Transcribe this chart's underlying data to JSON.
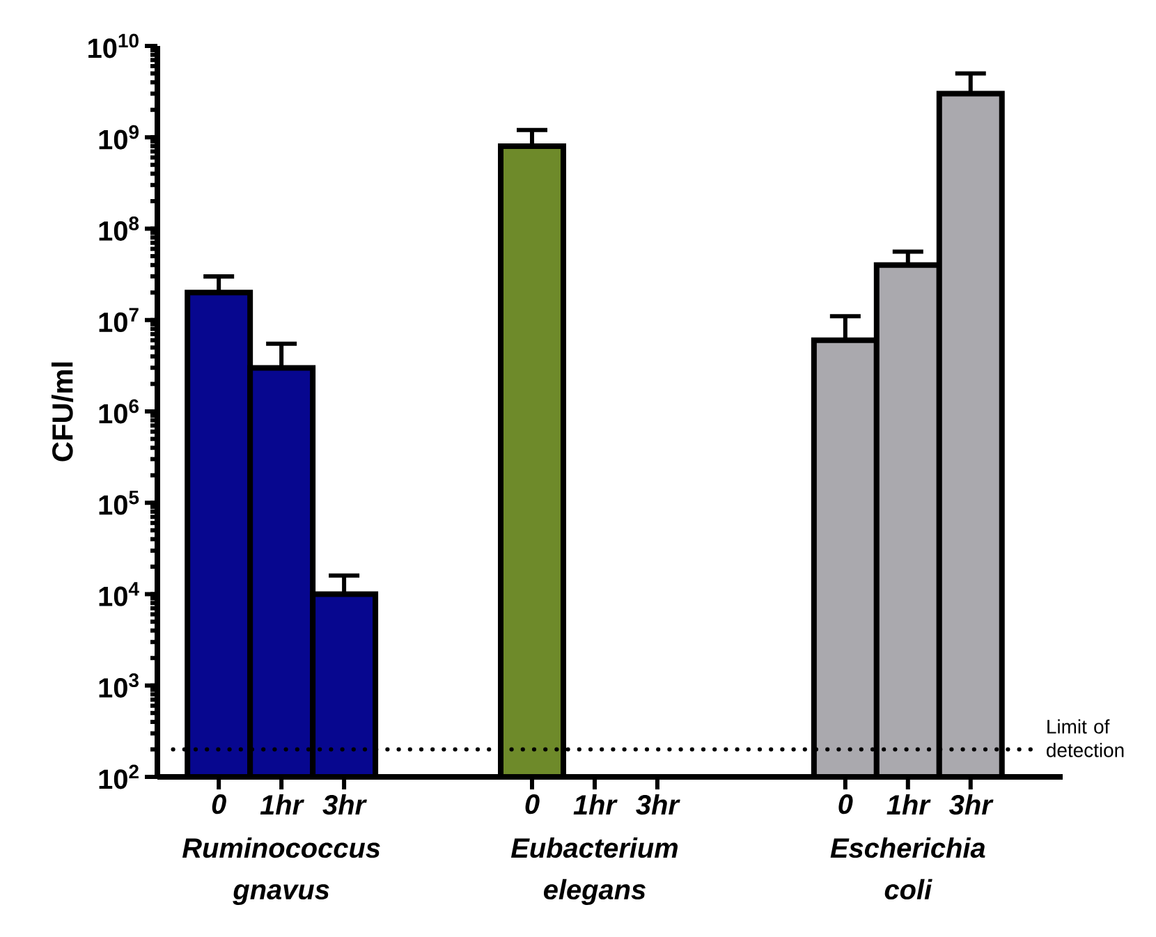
{
  "chart_data": {
    "type": "bar",
    "ylabel": "CFU/ml",
    "categories": [
      "0",
      "1hr",
      "3hr",
      null,
      null,
      "0",
      "1hr",
      "3hr",
      null,
      null,
      "0",
      "1hr",
      "3hr"
    ],
    "values": [
      20000000,
      3000000,
      10000,
      null,
      null,
      800000000,
      null,
      null,
      null,
      null,
      6000000,
      40000000,
      3000000000
    ],
    "colors": [
      "#07078f",
      "#07078f",
      "#07078f",
      null,
      null,
      "#6e8a2a",
      null,
      null,
      null,
      null,
      "#aaa9ae",
      "#aaa9ae",
      "#aaa9ae"
    ],
    "errors": [
      [
        20000000,
        30000000
      ],
      [
        3000000,
        5500000
      ],
      [
        10000,
        16000
      ],
      null,
      null,
      [
        800000000,
        1200000000
      ],
      null,
      null,
      null,
      null,
      [
        6000000,
        11000000
      ],
      [
        40000000,
        56000000
      ],
      [
        3000000000,
        5000000000
      ]
    ],
    "log": true,
    "ylim": [
      100,
      10000000000
    ],
    "yticks": [
      {
        "value": 100,
        "label": "10$^{2}$"
      },
      {
        "value": 1000,
        "label": "10$^{3}$"
      },
      {
        "value": 10000,
        "label": "10$^{4}$"
      },
      {
        "value": 100000,
        "label": "10$^{5}$"
      },
      {
        "value": 1000000,
        "label": "10$^{6}$"
      },
      {
        "value": 10000000,
        "label": "10$^{7}$"
      },
      {
        "value": 100000000,
        "label": "10$^{8}$"
      },
      {
        "value": 1000000000,
        "label": "10$^{9}$"
      },
      {
        "value": 10000000000,
        "label": "10$^{10}$"
      }
    ],
    "ref_lines": [
      {
        "axis": "y",
        "value": 200,
        "label": "Limit of detection",
        "line_style": "dotted"
      }
    ],
    "annotations": [
      "Ruminococcus gnavus",
      "Eubacterium elegans",
      "Escherichia coli"
    ]
  }
}
